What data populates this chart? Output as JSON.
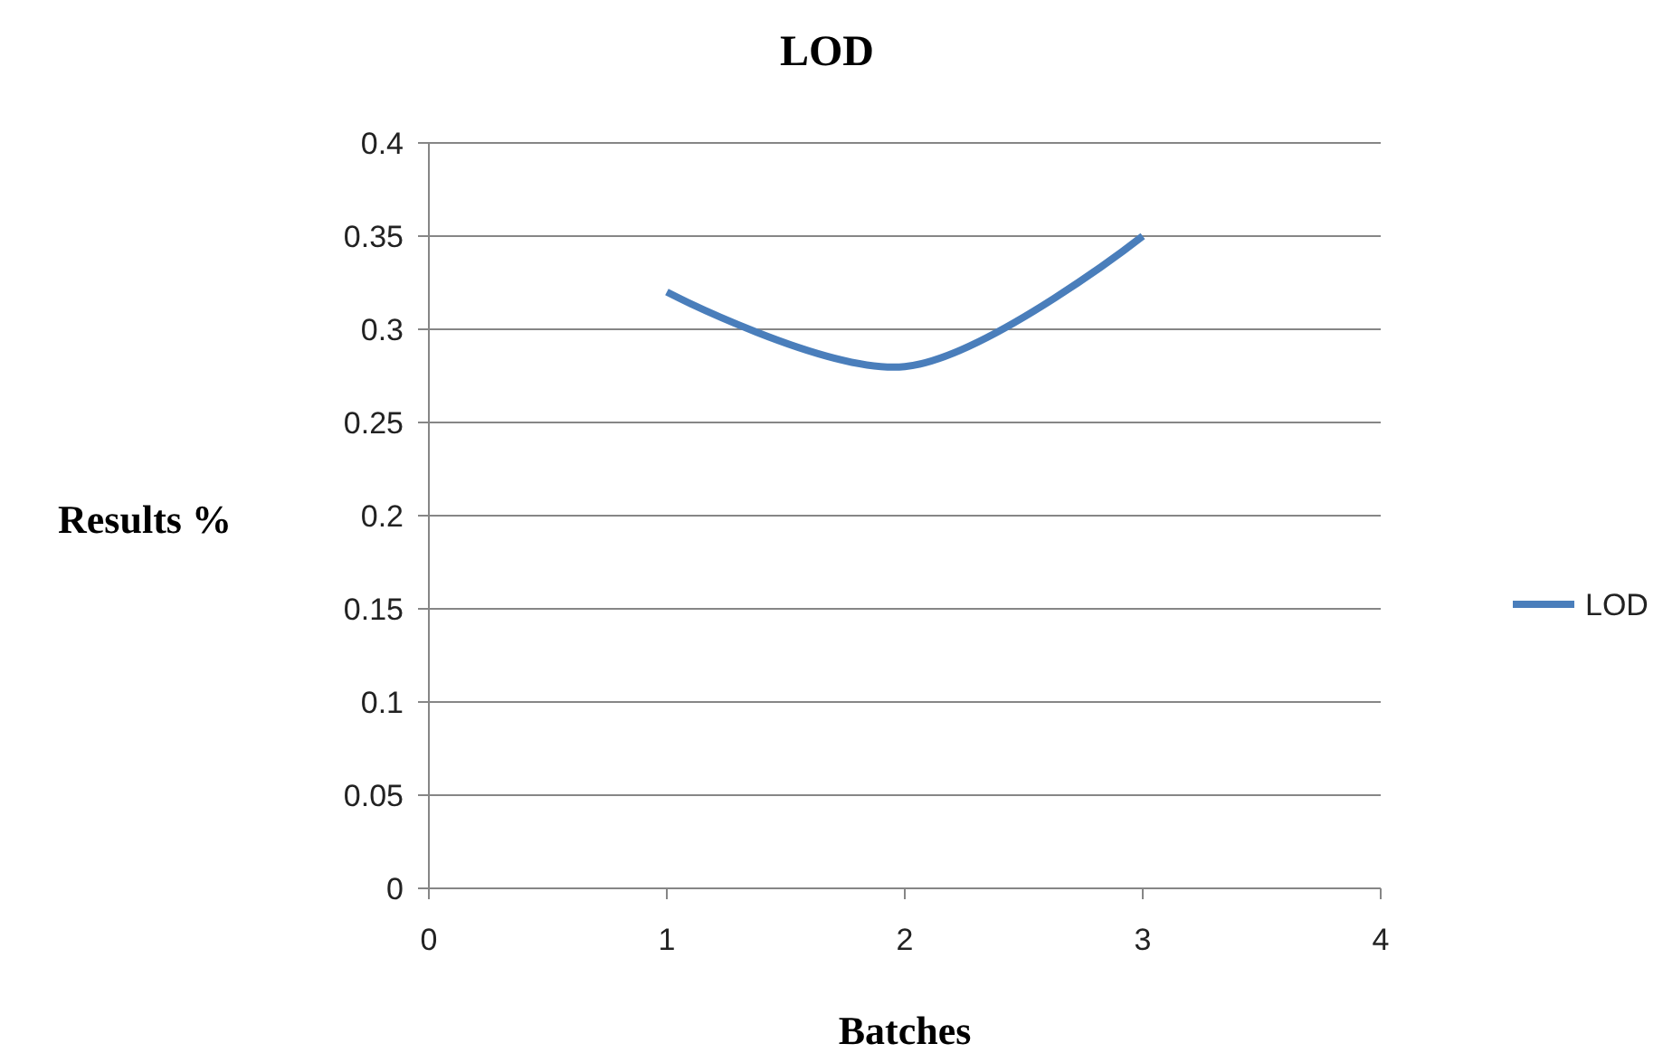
{
  "chart_data": {
    "type": "line",
    "title": "LOD",
    "xlabel": "Batches",
    "ylabel": "Results %",
    "x": [
      1,
      2,
      3
    ],
    "series": [
      {
        "name": "LOD",
        "color": "#4a7ebb",
        "values": [
          0.32,
          0.28,
          0.35
        ]
      }
    ],
    "xlim": [
      0,
      4
    ],
    "xticks": [
      0,
      1,
      2,
      3,
      4
    ],
    "ylim": [
      0,
      0.4
    ],
    "yticks": [
      0,
      0.05,
      0.1,
      0.15,
      0.2,
      0.25,
      0.3,
      0.35,
      0.4
    ],
    "grid": "y",
    "legend": "right",
    "marker": "none",
    "line_style": "solid"
  }
}
